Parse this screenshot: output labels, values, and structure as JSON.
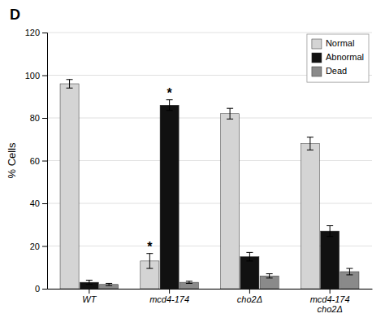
{
  "chart_data": {
    "type": "bar",
    "title": "D",
    "ylabel": "% Cells",
    "categories": [
      "WT",
      "mcd4-174",
      "cho2Δ",
      "mcd4-174\ncho2Δ"
    ],
    "series": [
      {
        "name": "Normal",
        "color": "#d4d4d4",
        "values": [
          96,
          13,
          82,
          68
        ],
        "errors": [
          2.0,
          3.5,
          2.5,
          3.0
        ]
      },
      {
        "name": "Abnormal",
        "color": "#111111",
        "values": [
          3,
          86,
          15,
          27
        ],
        "errors": [
          1.0,
          2.5,
          2.0,
          2.5
        ]
      },
      {
        "name": "Dead",
        "color": "#8a8a8a",
        "values": [
          2,
          3,
          6,
          8
        ],
        "errors": [
          0.5,
          0.5,
          1.0,
          1.5
        ]
      }
    ],
    "ylim": [
      0,
      120
    ],
    "yticks": [
      0,
      20,
      40,
      60,
      80,
      100,
      120
    ],
    "grid": true,
    "legend": "upper right",
    "annotations": [
      {
        "text": "*",
        "series": 0,
        "category": 1
      },
      {
        "text": "*",
        "series": 1,
        "category": 1
      }
    ]
  }
}
